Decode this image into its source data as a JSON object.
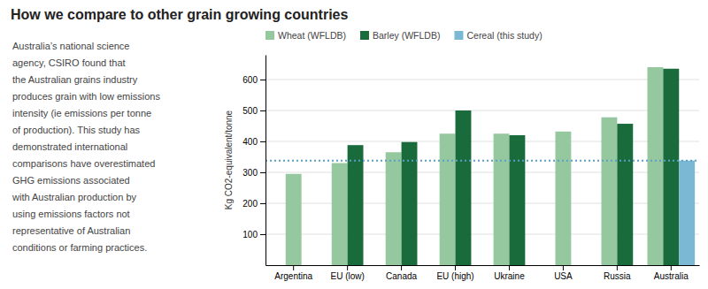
{
  "chart_data": {
    "type": "bar",
    "title": "How we compare to other grain growing countries",
    "annotations": [
      "Australia’s national science",
      "agency, CSIRO found that",
      "the Australian grains industry",
      "produces grain with low emissions",
      "intensity (ie emissions per tonne",
      "of production).  This study has",
      "demonstrated international",
      "comparisons have overestimated",
      "GHG emissions associated",
      "with Australian production by",
      "using emissions factors not",
      "representative of Australian",
      "conditions or farming practices."
    ],
    "categories": [
      "Argentina",
      "EU (low)",
      "Canada",
      "EU (high)",
      "Ukraine",
      "USA",
      "Russia",
      "Australia"
    ],
    "series": [
      {
        "name": "Wheat (WFLDB)",
        "color": "#95c89f",
        "values": [
          295,
          330,
          365,
          425,
          425,
          432,
          478,
          640
        ]
      },
      {
        "name": "Barley (WFLDB)",
        "color": "#1a6b3c",
        "values": [
          null,
          388,
          398,
          500,
          420,
          null,
          457,
          635
        ]
      },
      {
        "name": "Cereal (this study)",
        "color": "#7ab8d4",
        "values": [
          null,
          null,
          null,
          null,
          null,
          null,
          null,
          338
        ]
      }
    ],
    "reference_lines": [
      {
        "value": 338,
        "color": "#5a9fc8",
        "line_style": "dotted"
      }
    ],
    "ylabel": "Kg CO2-equivalent/tonne",
    "ylim": [
      0,
      680
    ],
    "yticks": [
      100,
      200,
      300,
      400,
      500,
      600
    ],
    "grid": true,
    "legend": "upper left"
  }
}
